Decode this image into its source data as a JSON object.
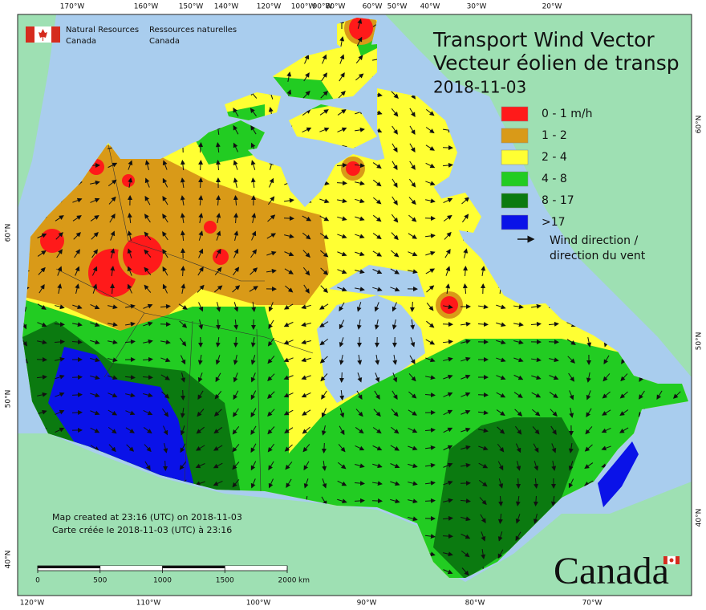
{
  "header": {
    "org_en": "Natural Resources",
    "country_en": "Canada",
    "org_fr": "Ressources naturelles",
    "country_fr": "Canada"
  },
  "title": {
    "line1": "Transport Wind Vector",
    "line2": "Vecteur éolien de transp",
    "date": "2018-11-03"
  },
  "legend": {
    "items": [
      {
        "label": "0 - 1 m/h",
        "color": "#ff1a1a"
      },
      {
        "label": "1 - 2",
        "color": "#d99a18"
      },
      {
        "label": "2 - 4",
        "color": "#ffff33"
      },
      {
        "label": "4 - 8",
        "color": "#22cc22"
      },
      {
        "label": "8 - 17",
        "color": "#0b7a10"
      },
      {
        "label": ">17",
        "color": "#0a12e8"
      }
    ],
    "arrow_label": [
      "Wind direction /",
      "direction du vent"
    ]
  },
  "top_lon_labels": [
    "170°W",
    "160°W",
    "150°W",
    "140°W",
    "120°W",
    "100°W",
    "90°W",
    "80°W",
    "60°W",
    "50°W",
    "40°W",
    "30°W",
    "20°W"
  ],
  "bottom_lon_labels": [
    "120°W",
    "110°W",
    "100°W",
    "90°W",
    "80°W",
    "70°W"
  ],
  "left_lat_labels": [
    "60°N",
    "50°N",
    "40°N"
  ],
  "right_lat_labels": [
    "60°N",
    "50°N",
    "40°N"
  ],
  "credits": [
    "Map created at 23:16 (UTC) on 2018-11-03",
    "Carte créée le 2018-11-03 (UTC) à 23:16"
  ],
  "scale": {
    "ticks": [
      0,
      500,
      1000,
      1500,
      2000
    ],
    "unit": "km"
  },
  "wordmark": "Canada"
}
